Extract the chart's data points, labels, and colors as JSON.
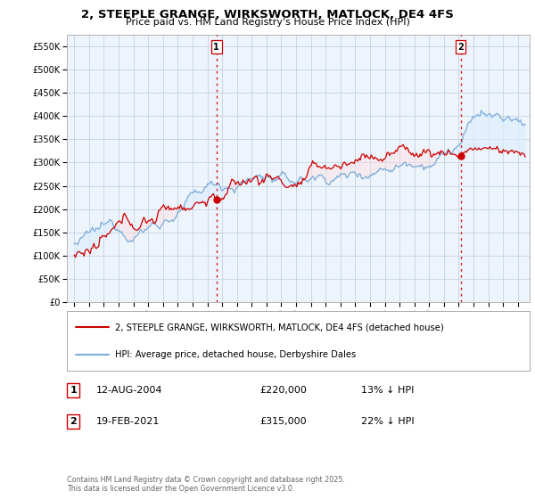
{
  "title": "2, STEEPLE GRANGE, WIRKSWORTH, MATLOCK, DE4 4FS",
  "subtitle": "Price paid vs. HM Land Registry's House Price Index (HPI)",
  "ylabel_ticks": [
    0,
    50000,
    100000,
    150000,
    200000,
    250000,
    300000,
    350000,
    400000,
    450000,
    500000,
    550000
  ],
  "ylabel_labels": [
    "£0",
    "£50K",
    "£100K",
    "£150K",
    "£200K",
    "£250K",
    "£300K",
    "£350K",
    "£400K",
    "£450K",
    "£500K",
    "£550K"
  ],
  "ylim": [
    0,
    575000
  ],
  "xlim_start": 1994.5,
  "xlim_end": 2025.8,
  "line1_color": "#cc0000",
  "line2_color": "#7aaddb",
  "fill_color": "#ddeeff",
  "vline_color": "#cc0000",
  "transaction1_x": 2004.614,
  "transaction1_y": 220000,
  "transaction1_label": "1",
  "transaction2_x": 2021.13,
  "transaction2_y": 315000,
  "transaction2_label": "2",
  "legend_line1": "2, STEEPLE GRANGE, WIRKSWORTH, MATLOCK, DE4 4FS (detached house)",
  "legend_line2": "HPI: Average price, detached house, Derbyshire Dales",
  "table_row1": [
    "1",
    "12-AUG-2004",
    "£220,000",
    "13% ↓ HPI"
  ],
  "table_row2": [
    "2",
    "19-FEB-2021",
    "£315,000",
    "22% ↓ HPI"
  ],
  "footer": "Contains HM Land Registry data © Crown copyright and database right 2025.\nThis data is licensed under the Open Government Licence v3.0.",
  "background_color": "#ffffff",
  "chart_bg_color": "#eef4fb",
  "grid_color": "#bbccdd"
}
